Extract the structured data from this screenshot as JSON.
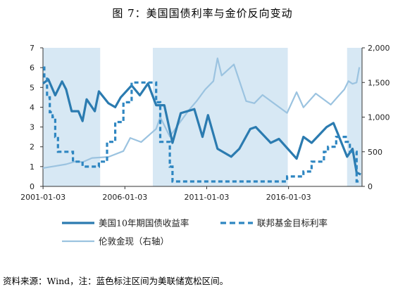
{
  "title": "图 7：美国国债利率与金价反向变动",
  "source_note": "资料来源：Wind，注：蓝色标注区间为美联储宽松区间。",
  "chart_data": {
    "type": "line",
    "title": "图 7：美国国债利率与金价反向变动",
    "x_range": [
      "2001-01-01",
      "2020-06-30"
    ],
    "x_ticks": [
      "2001-01-03",
      "2006-01-03",
      "2011-01-03",
      "2016-01-03"
    ],
    "y_left": {
      "range": [
        0,
        7
      ],
      "ticks": [
        "0",
        "1",
        "2",
        "3",
        "4",
        "5",
        "6",
        "7"
      ]
    },
    "y_right": {
      "range": [
        0,
        2000
      ],
      "ticks": [
        "0",
        "500",
        "1,000",
        "1,500",
        "2,000"
      ]
    },
    "grid": false,
    "legend_position": "bottom",
    "shaded_periods": [
      {
        "start": "2001-01-03",
        "end": "2004-06-30"
      },
      {
        "start": "2007-09-18",
        "end": "2015-12-16"
      },
      {
        "start": "2019-07-31",
        "end": "2020-06-30"
      }
    ],
    "colors": {
      "shade": "#d7e8f4",
      "series1": "#2b7bb0",
      "series2": "#2e86c1",
      "series3": "#9bc3e0",
      "axis": "#333333"
    },
    "series": [
      {
        "name": "美国10年期国债收益率",
        "axis": "left",
        "style": "thick-solid",
        "points": [
          [
            "2001-01",
            5.2
          ],
          [
            "2001-05",
            5.4
          ],
          [
            "2001-10",
            4.6
          ],
          [
            "2002-03",
            5.3
          ],
          [
            "2002-06",
            4.9
          ],
          [
            "2002-10",
            3.8
          ],
          [
            "2003-03",
            3.8
          ],
          [
            "2003-06",
            3.3
          ],
          [
            "2003-09",
            4.4
          ],
          [
            "2004-03",
            3.8
          ],
          [
            "2004-06",
            4.8
          ],
          [
            "2005-01",
            4.2
          ],
          [
            "2005-06",
            4.0
          ],
          [
            "2005-10",
            4.5
          ],
          [
            "2006-06",
            5.1
          ],
          [
            "2006-12",
            4.6
          ],
          [
            "2007-06",
            5.2
          ],
          [
            "2007-12",
            4.1
          ],
          [
            "2008-06",
            4.1
          ],
          [
            "2008-12",
            2.2
          ],
          [
            "2009-06",
            3.7
          ],
          [
            "2010-04",
            3.9
          ],
          [
            "2010-10",
            2.5
          ],
          [
            "2011-02",
            3.6
          ],
          [
            "2011-09",
            1.9
          ],
          [
            "2012-07",
            1.5
          ],
          [
            "2013-01",
            1.9
          ],
          [
            "2013-09",
            2.9
          ],
          [
            "2014-01",
            3.0
          ],
          [
            "2014-12",
            2.2
          ],
          [
            "2015-06",
            2.4
          ],
          [
            "2016-07",
            1.4
          ],
          [
            "2016-12",
            2.5
          ],
          [
            "2017-06",
            2.2
          ],
          [
            "2018-05",
            3.0
          ],
          [
            "2018-10",
            3.2
          ],
          [
            "2019-01",
            2.7
          ],
          [
            "2019-08",
            1.5
          ],
          [
            "2019-12",
            1.9
          ],
          [
            "2020-03",
            0.7
          ],
          [
            "2020-06",
            0.6
          ]
        ]
      },
      {
        "name": "联邦基金目标利率",
        "axis": "left",
        "style": "dashed",
        "points": [
          [
            "2001-01",
            6.0
          ],
          [
            "2001-02",
            5.5
          ],
          [
            "2001-04",
            4.5
          ],
          [
            "2001-06",
            3.75
          ],
          [
            "2001-08",
            3.5
          ],
          [
            "2001-10",
            2.5
          ],
          [
            "2001-12",
            1.75
          ],
          [
            "2002-11",
            1.25
          ],
          [
            "2003-06",
            1.0
          ],
          [
            "2004-06",
            1.25
          ],
          [
            "2004-12",
            2.25
          ],
          [
            "2005-06",
            3.25
          ],
          [
            "2005-12",
            4.25
          ],
          [
            "2006-06",
            5.25
          ],
          [
            "2007-08",
            5.25
          ],
          [
            "2007-12",
            4.25
          ],
          [
            "2008-03",
            2.25
          ],
          [
            "2008-10",
            1.0
          ],
          [
            "2008-12",
            0.25
          ],
          [
            "2015-12",
            0.5
          ],
          [
            "2016-12",
            0.75
          ],
          [
            "2017-06",
            1.25
          ],
          [
            "2018-03",
            1.75
          ],
          [
            "2018-06",
            2.0
          ],
          [
            "2018-12",
            2.5
          ],
          [
            "2019-07",
            2.25
          ],
          [
            "2019-10",
            1.75
          ],
          [
            "2020-03",
            0.25
          ],
          [
            "2020-06",
            0.25
          ]
        ]
      },
      {
        "name": "伦敦金现（右轴）",
        "axis": "right",
        "style": "solid",
        "points": [
          [
            "2001-01",
            265
          ],
          [
            "2001-09",
            290
          ],
          [
            "2002-06",
            320
          ],
          [
            "2003-01",
            360
          ],
          [
            "2003-06",
            350
          ],
          [
            "2004-01",
            410
          ],
          [
            "2005-01",
            425
          ],
          [
            "2005-12",
            510
          ],
          [
            "2006-05",
            700
          ],
          [
            "2007-01",
            640
          ],
          [
            "2007-12",
            830
          ],
          [
            "2008-03",
            1000
          ],
          [
            "2008-10",
            720
          ],
          [
            "2009-06",
            940
          ],
          [
            "2009-12",
            1100
          ],
          [
            "2010-06",
            1240
          ],
          [
            "2010-12",
            1400
          ],
          [
            "2011-06",
            1520
          ],
          [
            "2011-09",
            1850
          ],
          [
            "2011-12",
            1600
          ],
          [
            "2012-09",
            1760
          ],
          [
            "2013-06",
            1230
          ],
          [
            "2013-12",
            1200
          ],
          [
            "2014-06",
            1320
          ],
          [
            "2015-12",
            1060
          ],
          [
            "2016-07",
            1360
          ],
          [
            "2016-12",
            1140
          ],
          [
            "2017-09",
            1340
          ],
          [
            "2018-08",
            1180
          ],
          [
            "2019-01",
            1290
          ],
          [
            "2019-06",
            1400
          ],
          [
            "2019-09",
            1520
          ],
          [
            "2019-12",
            1480
          ],
          [
            "2020-03",
            1500
          ],
          [
            "2020-05",
            1720
          ]
        ]
      }
    ]
  }
}
